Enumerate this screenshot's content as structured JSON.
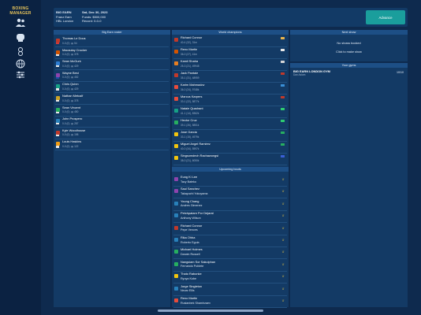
{
  "app": {
    "logo_top": "BOXING",
    "logo_bottom": "MANAGER"
  },
  "sidebar": {
    "icons": [
      "people-icon",
      "gloves-icon",
      "trainer-icon",
      "globe-icon",
      "settings-sliders-icon"
    ]
  },
  "header": {
    "gym_name": "BIG EARN",
    "role": "Franz Earn",
    "location": "HBL London",
    "date": "Sat, Dec 30, 2023",
    "funds": "Funds: $500,000",
    "record": "Record: 0-0-0",
    "advance_label": "Advance"
  },
  "colors": {
    "accent": "#1a9e9c",
    "panel": "#133a65",
    "title_bar": "#1d4f86",
    "gold": "#e3c345"
  },
  "roster": {
    "title": "Big Earn roster",
    "items": [
      {
        "name": "Thomas Le Dous",
        "record": "0-0 (0)",
        "rank": "54",
        "color": "#c0392b",
        "flag": "#cf3a3a"
      },
      {
        "name": "Macaulay Crocker",
        "record": "0-0 (0)",
        "rank": "378",
        "color": "#d35400",
        "flag": "#e8e8e8"
      },
      {
        "name": "Sean McGurk",
        "record": "0-0 (0)",
        "rank": "429",
        "color": "#2d7dd2",
        "flag": "#e8e8e8"
      },
      {
        "name": "Wayne Best",
        "record": "0-0 (0)",
        "rank": "452",
        "color": "#8e44ad",
        "flag": "#1f4fa8"
      },
      {
        "name": "Chris Quinn",
        "record": "0-0 (0)",
        "rank": "429",
        "color": "#16a085",
        "flag": "#e8e8e8"
      },
      {
        "name": "Nathan Metcalf",
        "record": "0-0 (0)",
        "rank": "378",
        "color": "#c9a227",
        "flag": "#e8e8e8"
      },
      {
        "name": "Sean Vincent",
        "record": "0-0 (0)",
        "rank": "450",
        "color": "#27ae60",
        "flag": "#e8e8e8"
      },
      {
        "name": "John Prospero",
        "record": "0-0 (0)",
        "rank": "287",
        "color": "#2980b9",
        "flag": "#e8e8e8"
      },
      {
        "name": "Kyle Woodhouse",
        "record": "0-0 (0)",
        "rank": "198",
        "color": "#c0392b",
        "flag": "#e8e8e8"
      },
      {
        "name": "Louis Haskins",
        "record": "0-0 (0)",
        "rank": "122",
        "color": "#f39c12",
        "flag": "#e8e8e8"
      }
    ]
  },
  "champions": {
    "title": "World champions",
    "items": [
      {
        "name": "Richard Connor",
        "record": "40-4 (32), 31m",
        "color": "#c0392b",
        "flag": "#e9b44c"
      },
      {
        "name": "Reno Martin",
        "record": "36-0 (27), 41m",
        "color": "#d35400",
        "flag": "#e8e8e8"
      },
      {
        "name": "Kamil Shaha",
        "record": "25-3 (21), 49948",
        "color": "#e67e22",
        "flag": "#d6d6d6"
      },
      {
        "name": "Jack Pantale",
        "record": "35-1 (31), 48959",
        "color": "#c0392b",
        "flag": "#c0392b"
      },
      {
        "name": "Karim Mahmadov",
        "record": "36-0 (24), 9748k",
        "color": "#e74c3c",
        "flag": "#3a8fd6"
      },
      {
        "name": "Marcus Karpers",
        "record": "33-1 (22), 5877k",
        "color": "#e74c3c",
        "flag": "#c0392b"
      },
      {
        "name": "Natale Quadrant",
        "record": "41-1 (14), 8362k",
        "color": "#16a085",
        "flag": "#2ecc71"
      },
      {
        "name": "Hector Cruz",
        "record": "39-1 (26), 5851k",
        "color": "#27ae60",
        "flag": "#2ecc71"
      },
      {
        "name": "Jose Garcia",
        "record": "33-1 (15), 4979k",
        "color": "#f1c40f",
        "flag": "#27ae60"
      },
      {
        "name": "Miguel Angel Ramirez",
        "record": "40-0 (34), 5597k",
        "color": "#f1c40f",
        "flag": "#27ae60"
      },
      {
        "name": "Singsomdech Rachawongsi",
        "record": "38-0 (21), 6050k",
        "color": "#f1c40f",
        "flag": "#3a5fd6"
      }
    ]
  },
  "upcoming": {
    "title": "Upcoming bouts",
    "items": [
      {
        "a": "Eung Ki Lee",
        "b": "Tacy Baleko",
        "color": "#8e44ad"
      },
      {
        "a": "Saul Sanchez",
        "b": "Takayuchi Yokoyama",
        "color": "#8e44ad"
      },
      {
        "a": "Young Chang",
        "b": "Andres Gimenez",
        "color": "#2980b9"
      },
      {
        "a": "Petchpatarn Por Dejarat",
        "b": "Anthony Wilson",
        "color": "#2980b9"
      },
      {
        "a": "Richard Connor",
        "b": "Pepe Vences",
        "color": "#c0392b"
      },
      {
        "a": "Rika Ohba",
        "b": "Roberto Eguia",
        "color": "#2980b9"
      },
      {
        "a": "Michael Holmes",
        "b": "Darwin Russell",
        "color": "#27ae60"
      },
      {
        "a": "Nangsiam Sor Sakulphan",
        "b": "Fernando Poblete",
        "color": "#27ae60"
      },
      {
        "a": "Thato Rabonke",
        "b": "Ryuya Kobe",
        "color": "#f1c40f"
      },
      {
        "a": "Jorge Singleton",
        "b": "Nevar Ellis",
        "color": "#2980b9"
      },
      {
        "a": "Reno Martin",
        "b": "Ruslanbek Shamirzaev",
        "color": "#e74c3c"
      }
    ]
  },
  "next_show": {
    "title": "Next show",
    "empty_text": "No shows booked",
    "action_text": "Click to make show"
  },
  "gyms": {
    "title": "Your gyms",
    "items": [
      {
        "name": "BIG EARN LONDON GYM",
        "owner": "Dan Aslam",
        "count": "10/10"
      }
    ]
  }
}
